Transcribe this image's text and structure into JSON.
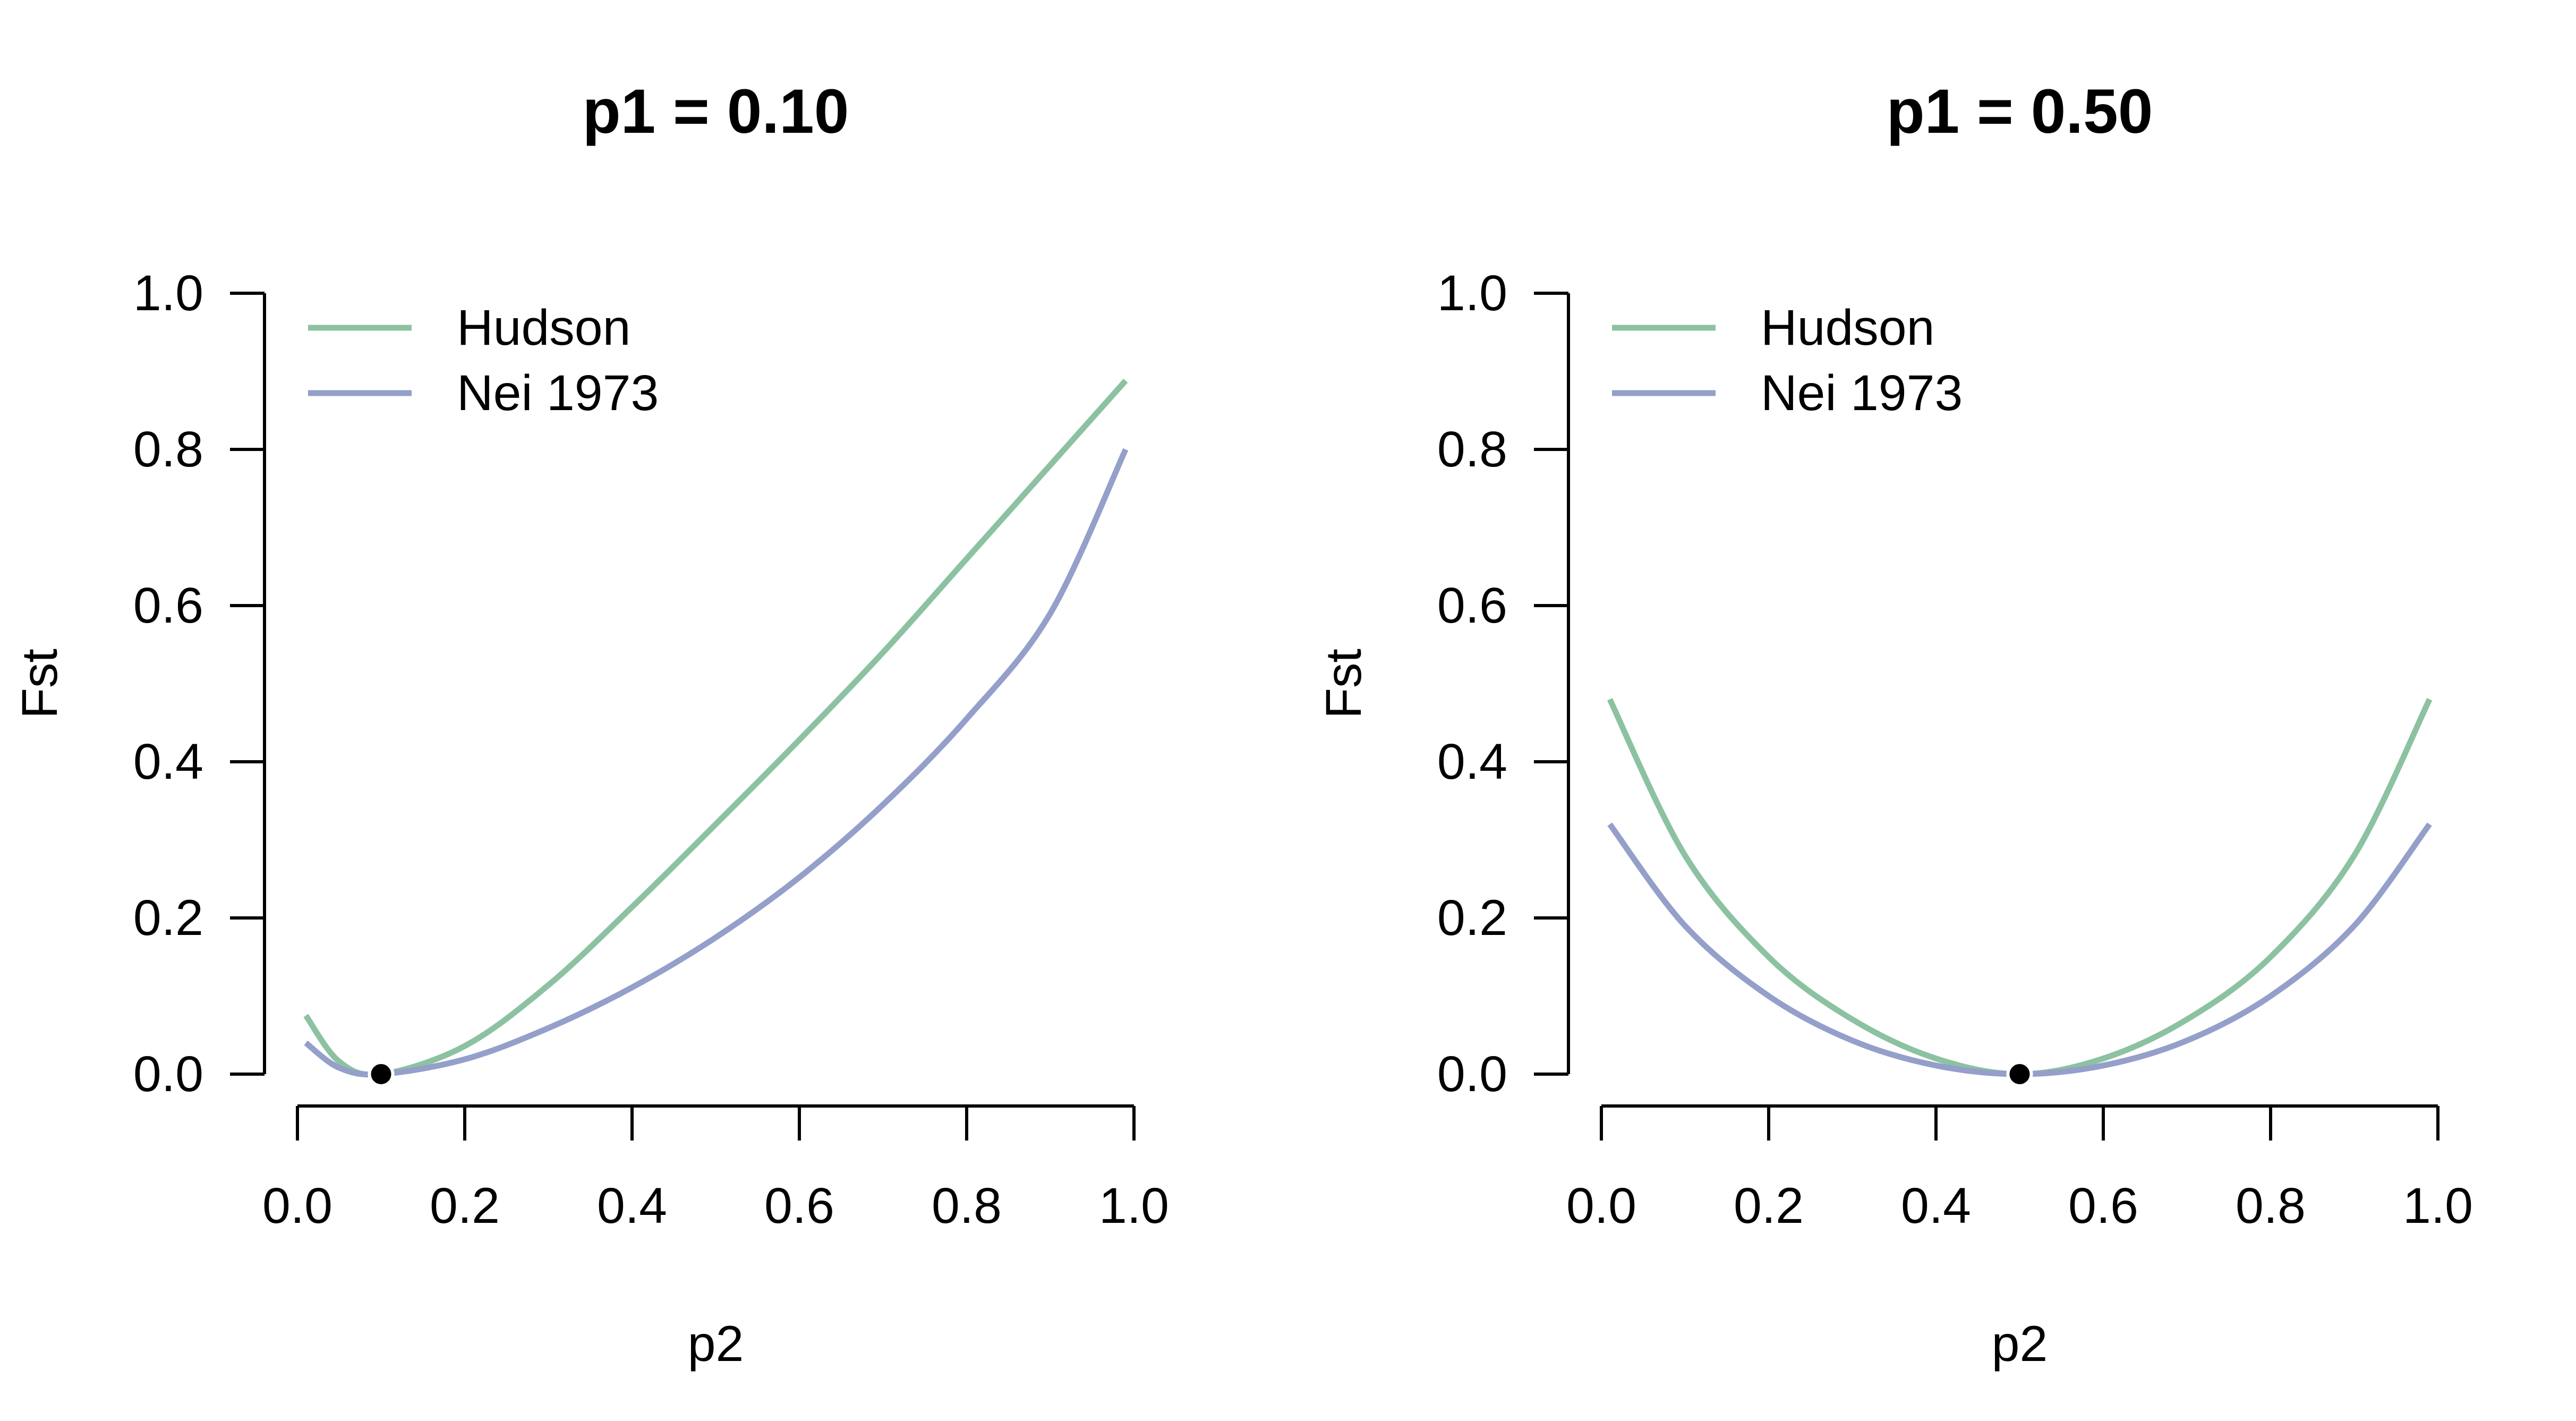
{
  "chart_data": [
    {
      "type": "line",
      "title": "p1 = 0.10",
      "xlabel": "p2",
      "ylabel": "Fst",
      "xlim": [
        0,
        1
      ],
      "ylim": [
        0,
        1
      ],
      "xticks": [
        "0.0",
        "0.2",
        "0.4",
        "0.6",
        "0.8",
        "1.0"
      ],
      "yticks": [
        "0.0",
        "0.2",
        "0.4",
        "0.6",
        "0.8",
        "1.0"
      ],
      "grid": false,
      "legend_position": "top-left",
      "x": [
        0.01,
        0.05,
        0.1,
        0.2,
        0.3,
        0.4,
        0.5,
        0.6,
        0.7,
        0.8,
        0.9,
        0.99
      ],
      "series": [
        {
          "name": "Hudson",
          "color": "#8cc2a1",
          "values": [
            0.075,
            0.016,
            0.0,
            0.036,
            0.114,
            0.214,
            0.32,
            0.428,
            0.54,
            0.66,
            0.78,
            0.888
          ]
        },
        {
          "name": "Nei 1973",
          "color": "#949fca",
          "values": [
            0.04,
            0.008,
            0.0,
            0.019,
            0.059,
            0.111,
            0.175,
            0.252,
            0.345,
            0.455,
            0.59,
            0.8
          ]
        }
      ],
      "highlight_point": {
        "x": 0.1,
        "y": 0.0
      }
    },
    {
      "type": "line",
      "title": "p1 = 0.50",
      "xlabel": "p2",
      "ylabel": "Fst",
      "xlim": [
        0,
        1
      ],
      "ylim": [
        0,
        1
      ],
      "xticks": [
        "0.0",
        "0.2",
        "0.4",
        "0.6",
        "0.8",
        "1.0"
      ],
      "yticks": [
        "0.0",
        "0.2",
        "0.4",
        "0.6",
        "0.8",
        "1.0"
      ],
      "grid": false,
      "legend_position": "top-left",
      "x": [
        0.01,
        0.1,
        0.2,
        0.3,
        0.4,
        0.5,
        0.6,
        0.7,
        0.8,
        0.9,
        0.99
      ],
      "series": [
        {
          "name": "Hudson",
          "color": "#8cc2a1",
          "values": [
            0.48,
            0.28,
            0.15,
            0.07,
            0.02,
            0.0,
            0.02,
            0.07,
            0.15,
            0.28,
            0.48
          ]
        },
        {
          "name": "Nei 1973",
          "color": "#949fca",
          "values": [
            0.32,
            0.19,
            0.1,
            0.043,
            0.011,
            0.0,
            0.011,
            0.043,
            0.1,
            0.19,
            0.32
          ]
        }
      ],
      "highlight_point": {
        "x": 0.5,
        "y": 0.0
      }
    }
  ]
}
